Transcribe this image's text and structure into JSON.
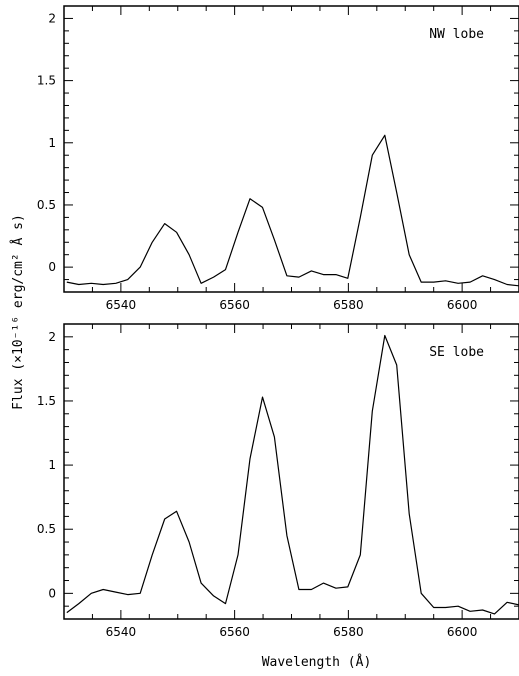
{
  "chart_data": [
    {
      "type": "line",
      "label": "NW lobe",
      "xlim": [
        6530,
        6610
      ],
      "ylim": [
        -0.2,
        2.1
      ],
      "xticks": [
        6540,
        6560,
        6580,
        6600
      ],
      "yticks": [
        0,
        0.5,
        1,
        1.5,
        2
      ],
      "ytick_labels": [
        "0",
        "0.5",
        "1",
        "1.5",
        "2"
      ],
      "x": [
        6530.5,
        6532.6,
        6534.8,
        6536.9,
        6539.1,
        6541.2,
        6543.4,
        6545.5,
        6547.7,
        6549.8,
        6552.0,
        6554.1,
        6556.3,
        6558.4,
        6560.6,
        6562.7,
        6564.9,
        6567.0,
        6569.2,
        6571.3,
        6573.5,
        6575.6,
        6577.8,
        6579.9,
        6582.1,
        6584.2,
        6586.4,
        6588.5,
        6590.7,
        6592.8,
        6595.0,
        6597.1,
        6599.3,
        6601.4,
        6603.6,
        6605.7,
        6607.9,
        6610.0
      ],
      "values": [
        -0.12,
        -0.14,
        -0.13,
        -0.14,
        -0.13,
        -0.1,
        0.0,
        0.2,
        0.35,
        0.28,
        0.1,
        -0.13,
        -0.08,
        -0.02,
        0.28,
        0.55,
        0.48,
        0.22,
        -0.07,
        -0.08,
        -0.03,
        -0.06,
        -0.06,
        -0.09,
        0.4,
        0.9,
        1.06,
        0.6,
        0.1,
        -0.12,
        -0.12,
        -0.11,
        -0.13,
        -0.12,
        -0.07,
        -0.1,
        -0.14,
        -0.15
      ]
    },
    {
      "type": "line",
      "label": "SE lobe",
      "xlim": [
        6530,
        6610
      ],
      "ylim": [
        -0.2,
        2.1
      ],
      "xticks": [
        6540,
        6560,
        6580,
        6600
      ],
      "yticks": [
        0,
        0.5,
        1,
        1.5,
        2
      ],
      "ytick_labels": [
        "0",
        "0.5",
        "1",
        "1.5",
        "2"
      ],
      "x": [
        6530.5,
        6532.6,
        6534.8,
        6536.9,
        6539.1,
        6541.2,
        6543.4,
        6545.5,
        6547.7,
        6549.8,
        6552.0,
        6554.1,
        6556.3,
        6558.4,
        6560.6,
        6562.7,
        6564.9,
        6567.0,
        6569.2,
        6571.3,
        6573.5,
        6575.6,
        6577.8,
        6579.9,
        6582.1,
        6584.2,
        6586.4,
        6588.5,
        6590.7,
        6592.8,
        6595.0,
        6597.1,
        6599.3,
        6601.4,
        6603.6,
        6605.7,
        6607.9,
        6610.0
      ],
      "values": [
        -0.15,
        -0.08,
        0.0,
        0.03,
        0.01,
        -0.01,
        0.0,
        0.3,
        0.58,
        0.64,
        0.4,
        0.08,
        -0.02,
        -0.08,
        0.3,
        1.05,
        1.53,
        1.22,
        0.45,
        0.03,
        0.03,
        0.08,
        0.04,
        0.05,
        0.3,
        1.42,
        2.01,
        1.78,
        0.62,
        0.0,
        -0.11,
        -0.11,
        -0.1,
        -0.14,
        -0.13,
        -0.16,
        -0.07,
        -0.09
      ]
    }
  ],
  "xlabel": "Wavelength (Å)",
  "ylabel": "Flux (×10⁻¹⁶ erg/cm² Å s)"
}
